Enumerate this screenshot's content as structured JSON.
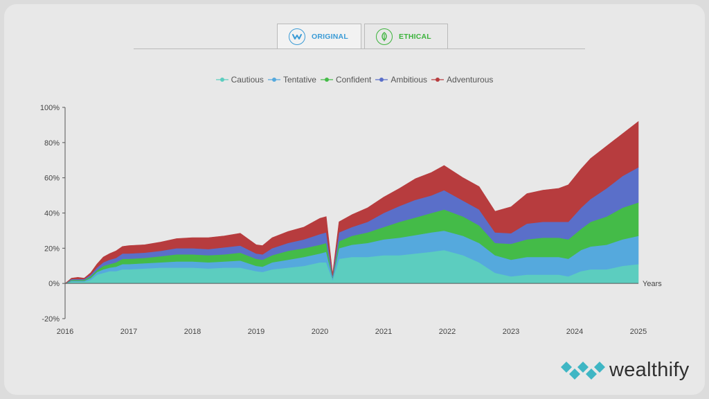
{
  "tabs": {
    "original": {
      "label": "ORIGINAL",
      "color": "#3a9bd6",
      "active": true
    },
    "ethical": {
      "label": "ETHICAL",
      "color": "#3bb33b",
      "active": false
    }
  },
  "brand": {
    "name": "wealthify",
    "color": "#3fb6c4"
  },
  "chart_data": {
    "type": "area",
    "stacked": true,
    "x_axis_label": "Years",
    "xlim": [
      2016,
      2025
    ],
    "ylim": [
      -20,
      100
    ],
    "y_ticks": [
      "100%",
      "80%",
      "60%",
      "40%",
      "20%",
      "0%",
      "-20%"
    ],
    "x_ticks": [
      "2016",
      "2017",
      "2018",
      "2019",
      "2020",
      "2021",
      "2022",
      "2023",
      "2024",
      "2025"
    ],
    "legend_position": "top",
    "x": [
      2016.0,
      2016.1,
      2016.2,
      2016.3,
      2016.4,
      2016.5,
      2016.6,
      2016.7,
      2016.8,
      2016.9,
      2017.0,
      2017.25,
      2017.5,
      2017.75,
      2018.0,
      2018.25,
      2018.5,
      2018.75,
      2019.0,
      2019.1,
      2019.25,
      2019.5,
      2019.75,
      2020.0,
      2020.1,
      2020.2,
      2020.3,
      2020.5,
      2020.75,
      2021.0,
      2021.25,
      2021.5,
      2021.75,
      2021.95,
      2022.25,
      2022.5,
      2022.75,
      2023.0,
      2023.25,
      2023.5,
      2023.75,
      2023.9,
      2024.1,
      2024.25,
      2024.5,
      2024.75,
      2025.0
    ],
    "series": [
      {
        "name": "Cautious",
        "color": "#5ccdbf",
        "values": [
          0,
          1,
          1,
          1,
          2,
          5,
          6,
          7,
          7,
          8,
          8,
          8.5,
          9,
          9,
          9,
          8.5,
          9,
          9,
          7,
          6.5,
          8,
          9,
          10,
          12,
          12,
          2,
          14,
          15,
          15,
          16,
          16,
          17,
          18,
          19,
          16,
          12,
          6,
          4,
          5,
          5,
          5,
          4,
          7,
          8,
          8,
          10,
          11
        ]
      },
      {
        "name": "Tentative",
        "color": "#55a9dd",
        "values": [
          0,
          0.5,
          0.5,
          0.5,
          1,
          1.5,
          2,
          2,
          2.5,
          3,
          3,
          3,
          3,
          3.5,
          3.5,
          3.5,
          3.5,
          4,
          3,
          3,
          4,
          4.5,
          5,
          5,
          6,
          1,
          6,
          7,
          8,
          9,
          10,
          10.5,
          11,
          11,
          11,
          11,
          10,
          9.5,
          10,
          10,
          10,
          10,
          12,
          13,
          14,
          15,
          16
        ]
      },
      {
        "name": "Confident",
        "color": "#44bb48",
        "values": [
          0,
          0.5,
          0.5,
          0.5,
          1,
          1,
          2,
          2,
          2.5,
          3,
          3,
          3,
          3.5,
          4,
          4,
          4,
          4,
          4.5,
          4,
          4,
          4,
          5,
          5,
          5,
          5,
          0.5,
          4,
          5,
          6,
          7,
          9,
          10,
          11,
          12,
          11,
          10,
          7,
          9,
          10,
          11,
          11,
          11,
          12,
          14,
          16,
          18,
          19
        ]
      },
      {
        "name": "Ambitious",
        "color": "#5a6fc9",
        "values": [
          0,
          0.5,
          0.5,
          0.5,
          1,
          1.5,
          2,
          2.5,
          2.5,
          3,
          3,
          3,
          3,
          3.5,
          3.5,
          3.5,
          4,
          4,
          3,
          3,
          4,
          4.5,
          5,
          6,
          6,
          1,
          5,
          5,
          6,
          8,
          9,
          10,
          10,
          11,
          9,
          9,
          6,
          6,
          9,
          9,
          9,
          10,
          12,
          13,
          16,
          18,
          20
        ]
      },
      {
        "name": "Adventurous",
        "color": "#b73c3e",
        "values": [
          0,
          0.5,
          1,
          0.5,
          1,
          2,
          3,
          3.5,
          4,
          4,
          4.5,
          4.5,
          5,
          5.5,
          6,
          6.5,
          6.5,
          7,
          5,
          5,
          6,
          6.5,
          7,
          9,
          9,
          1,
          6,
          7,
          8,
          9,
          10,
          12,
          13,
          14,
          13,
          13,
          12,
          15,
          17,
          18,
          19,
          21,
          22,
          23,
          24,
          24,
          26
        ]
      }
    ]
  }
}
